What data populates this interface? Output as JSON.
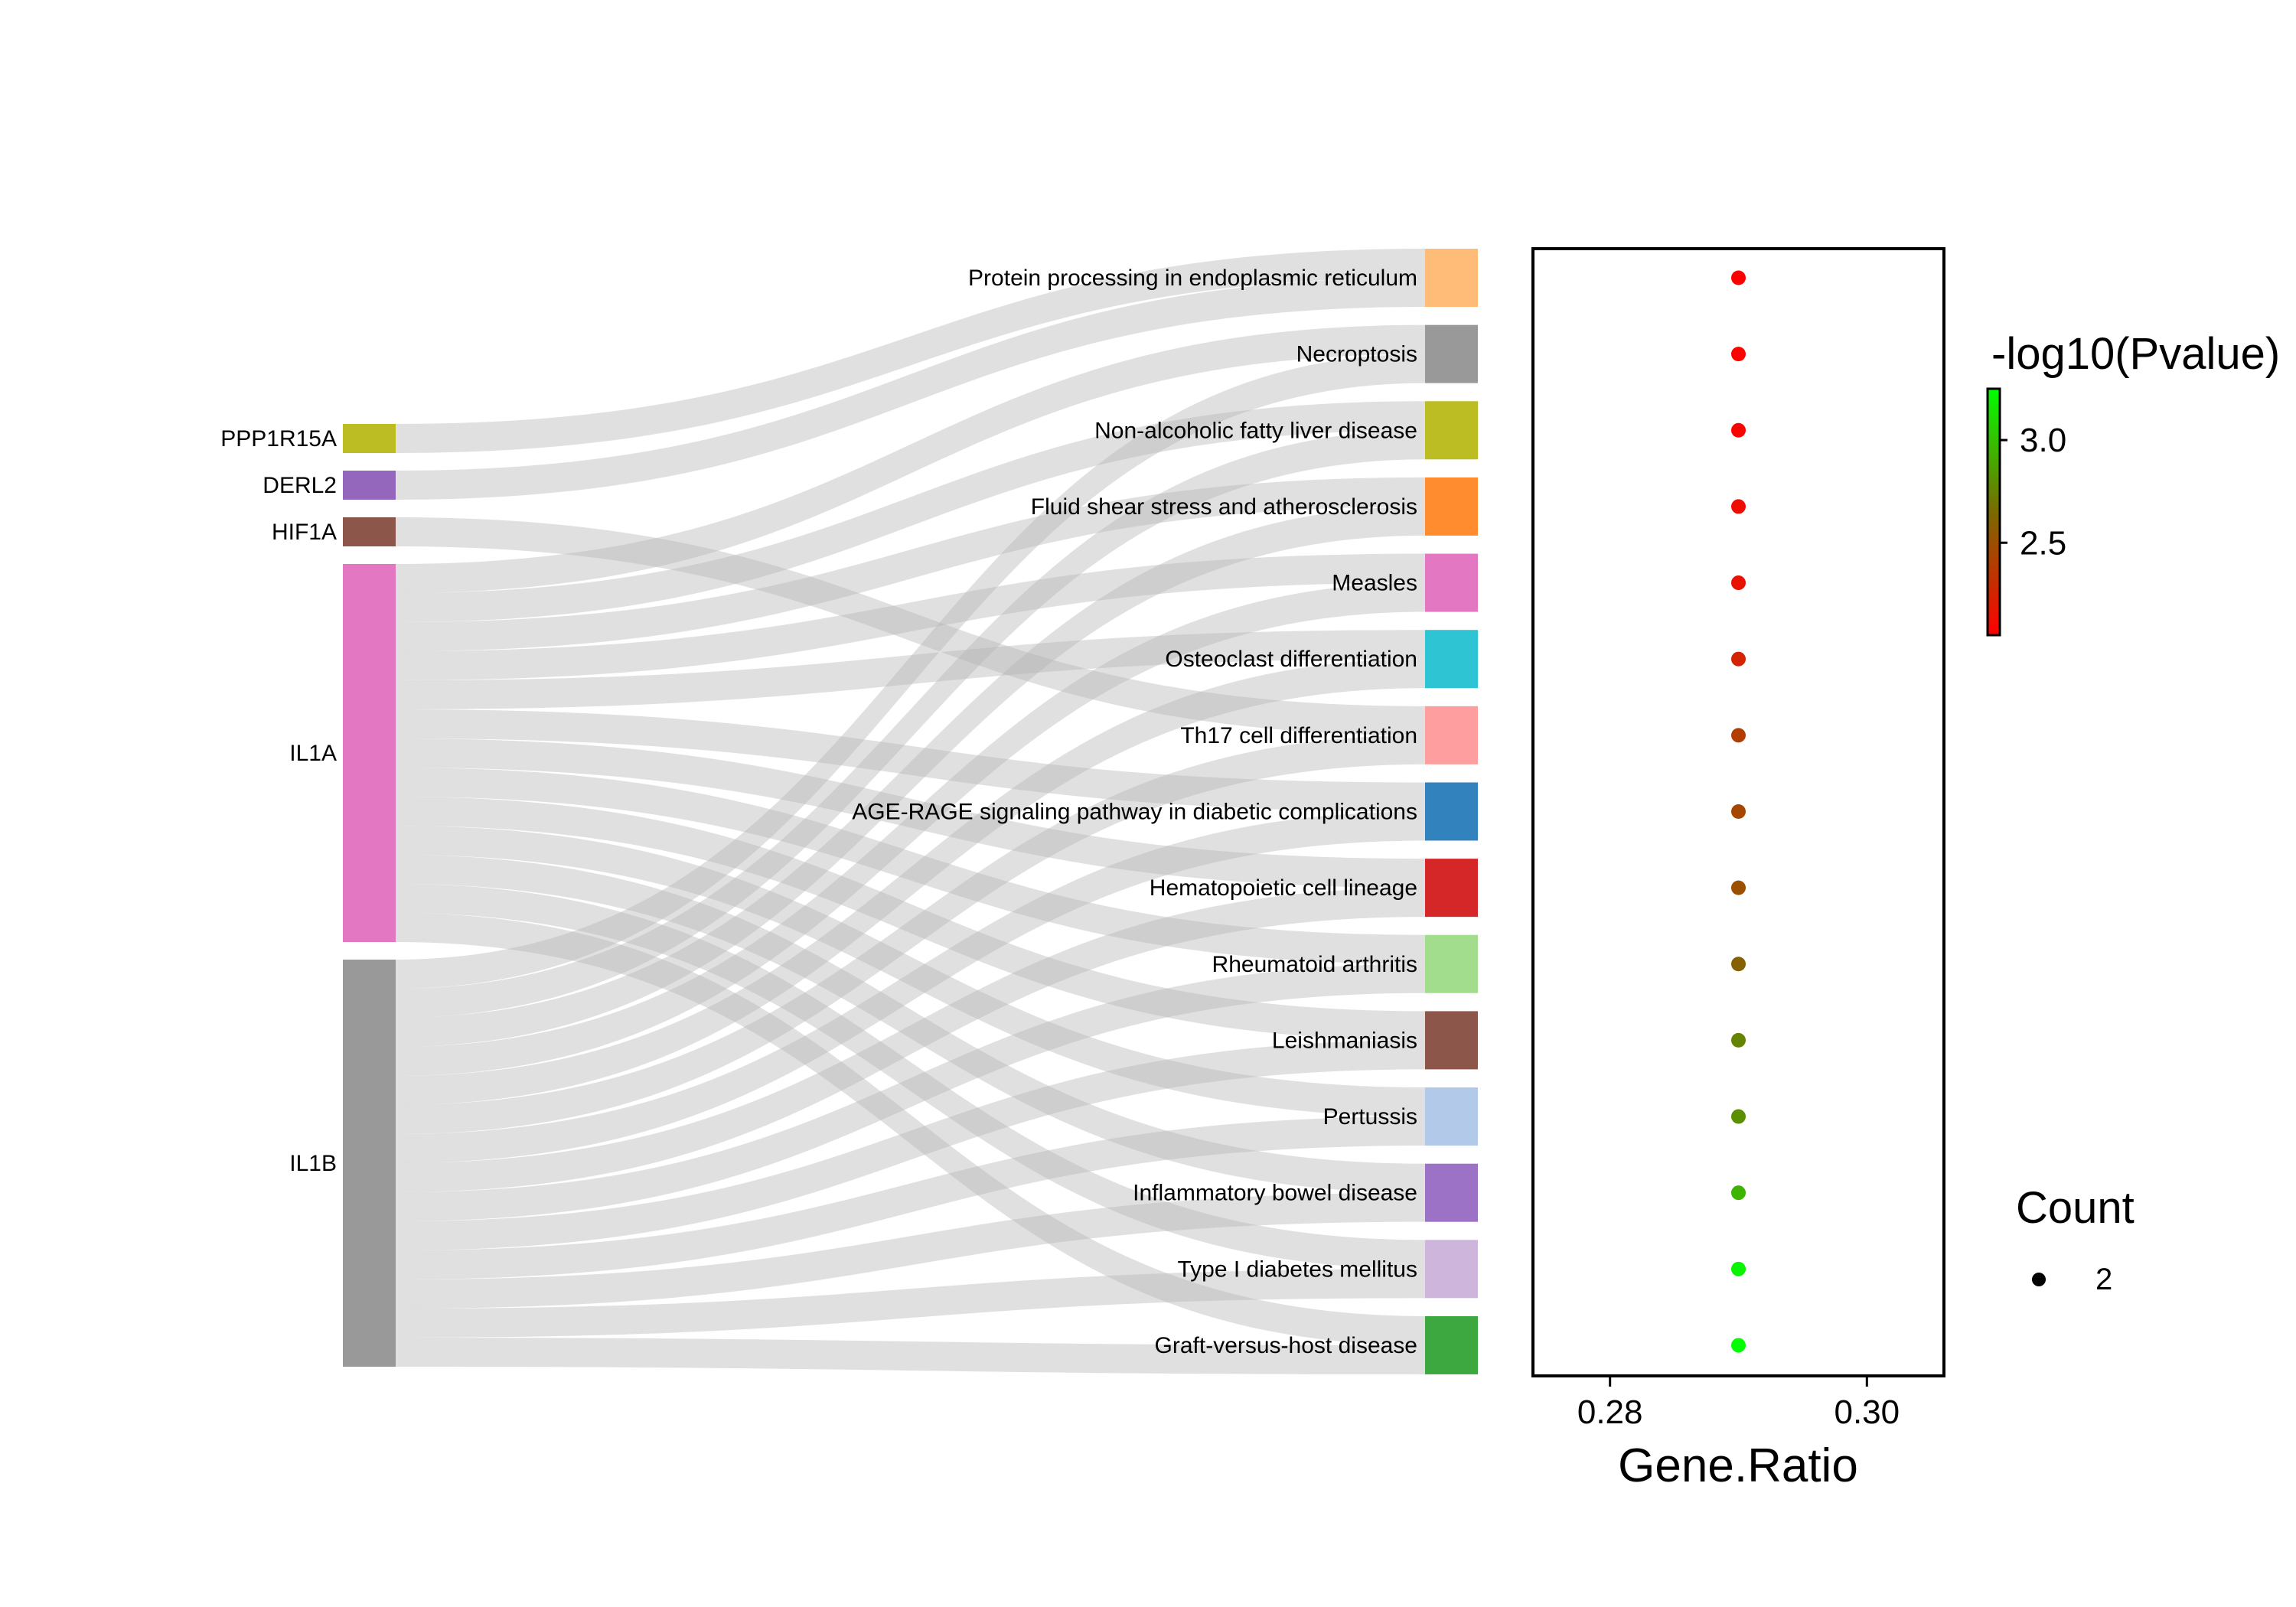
{
  "chart_data": {
    "type": "sankey-dotplot",
    "genes": [
      {
        "name": "PPP1R15A",
        "color": "#bcbd22"
      },
      {
        "name": "DERL2",
        "color": "#9467bd"
      },
      {
        "name": "HIF1A",
        "color": "#8c564b"
      },
      {
        "name": "IL1A",
        "color": "#e377c2"
      },
      {
        "name": "IL1B",
        "color": "#999999"
      }
    ],
    "pathways": [
      {
        "name": "Protein processing in endoplasmic reticulum",
        "color": "#ffbb78",
        "gene_ratio": 0.29,
        "neg_log10_p": 2.05,
        "count": 2,
        "genes": [
          "PPP1R15A",
          "DERL2"
        ]
      },
      {
        "name": "Necroptosis",
        "color": "#999999",
        "gene_ratio": 0.29,
        "neg_log10_p": 2.07,
        "count": 2,
        "genes": [
          "IL1A",
          "IL1B"
        ]
      },
      {
        "name": "Non-alcoholic fatty liver disease",
        "color": "#bcbd22",
        "gene_ratio": 0.29,
        "neg_log10_p": 2.08,
        "count": 2,
        "genes": [
          "IL1A",
          "IL1B"
        ]
      },
      {
        "name": "Fluid shear stress and atherosclerosis",
        "color": "#ff8c2e",
        "gene_ratio": 0.29,
        "neg_log10_p": 2.12,
        "count": 2,
        "genes": [
          "IL1A",
          "IL1B"
        ]
      },
      {
        "name": "Measles",
        "color": "#e377c2",
        "gene_ratio": 0.29,
        "neg_log10_p": 2.15,
        "count": 2,
        "genes": [
          "IL1A",
          "IL1B"
        ]
      },
      {
        "name": "Osteoclast differentiation",
        "color": "#2fc4d4",
        "gene_ratio": 0.29,
        "neg_log10_p": 2.25,
        "count": 2,
        "genes": [
          "IL1A",
          "IL1B"
        ]
      },
      {
        "name": "Th17 cell differentiation",
        "color": "#ff9e9e",
        "gene_ratio": 0.29,
        "neg_log10_p": 2.4,
        "count": 2,
        "genes": [
          "HIF1A",
          "IL1B"
        ]
      },
      {
        "name": "AGE-RAGE signaling pathway in diabetic complications",
        "color": "#3182bd",
        "gene_ratio": 0.29,
        "neg_log10_p": 2.45,
        "count": 2,
        "genes": [
          "IL1A",
          "IL1B"
        ]
      },
      {
        "name": "Hematopoietic cell lineage",
        "color": "#d62728",
        "gene_ratio": 0.29,
        "neg_log10_p": 2.5,
        "count": 2,
        "genes": [
          "IL1A",
          "IL1B"
        ]
      },
      {
        "name": "Rheumatoid arthritis",
        "color": "#a1dd8c",
        "gene_ratio": 0.29,
        "neg_log10_p": 2.6,
        "count": 2,
        "genes": [
          "IL1A",
          "IL1B"
        ]
      },
      {
        "name": "Leishmaniasis",
        "color": "#8c564b",
        "gene_ratio": 0.29,
        "neg_log10_p": 2.75,
        "count": 2,
        "genes": [
          "IL1A",
          "IL1B"
        ]
      },
      {
        "name": "Pertussis",
        "color": "#b3c9ea",
        "gene_ratio": 0.29,
        "neg_log10_p": 2.8,
        "count": 2,
        "genes": [
          "IL1A",
          "IL1B"
        ]
      },
      {
        "name": "Inflammatory bowel disease",
        "color": "#9c72c7",
        "gene_ratio": 0.29,
        "neg_log10_p": 2.95,
        "count": 2,
        "genes": [
          "IL1A",
          "IL1B"
        ]
      },
      {
        "name": "Type I diabetes mellitus",
        "color": "#cdb5dc",
        "gene_ratio": 0.29,
        "neg_log10_p": 3.2,
        "count": 2,
        "genes": [
          "IL1A",
          "IL1B"
        ]
      },
      {
        "name": "Graft-versus-host disease",
        "color": "#3da740",
        "gene_ratio": 0.29,
        "neg_log10_p": 3.25,
        "count": 2,
        "genes": [
          "IL1A",
          "IL1B"
        ]
      }
    ],
    "dotplot": {
      "xlabel": "Gene.Ratio",
      "x_ticks": [
        0.28,
        0.3
      ],
      "x_tick_labels": [
        "0.28",
        "0.30"
      ],
      "xlim": [
        0.274,
        0.306
      ]
    },
    "colorbar": {
      "title": "-log10(Pvalue)",
      "ticks": [
        2.5,
        3.0
      ],
      "tick_labels": [
        "2.5",
        "3.0"
      ],
      "range": [
        2.05,
        3.25
      ],
      "low_color": "#ff0000",
      "mid_color": "#7a6a00",
      "high_color": "#00ff00"
    },
    "size_legend": {
      "title": "Count",
      "values": [
        2
      ],
      "labels": [
        "2"
      ]
    }
  }
}
